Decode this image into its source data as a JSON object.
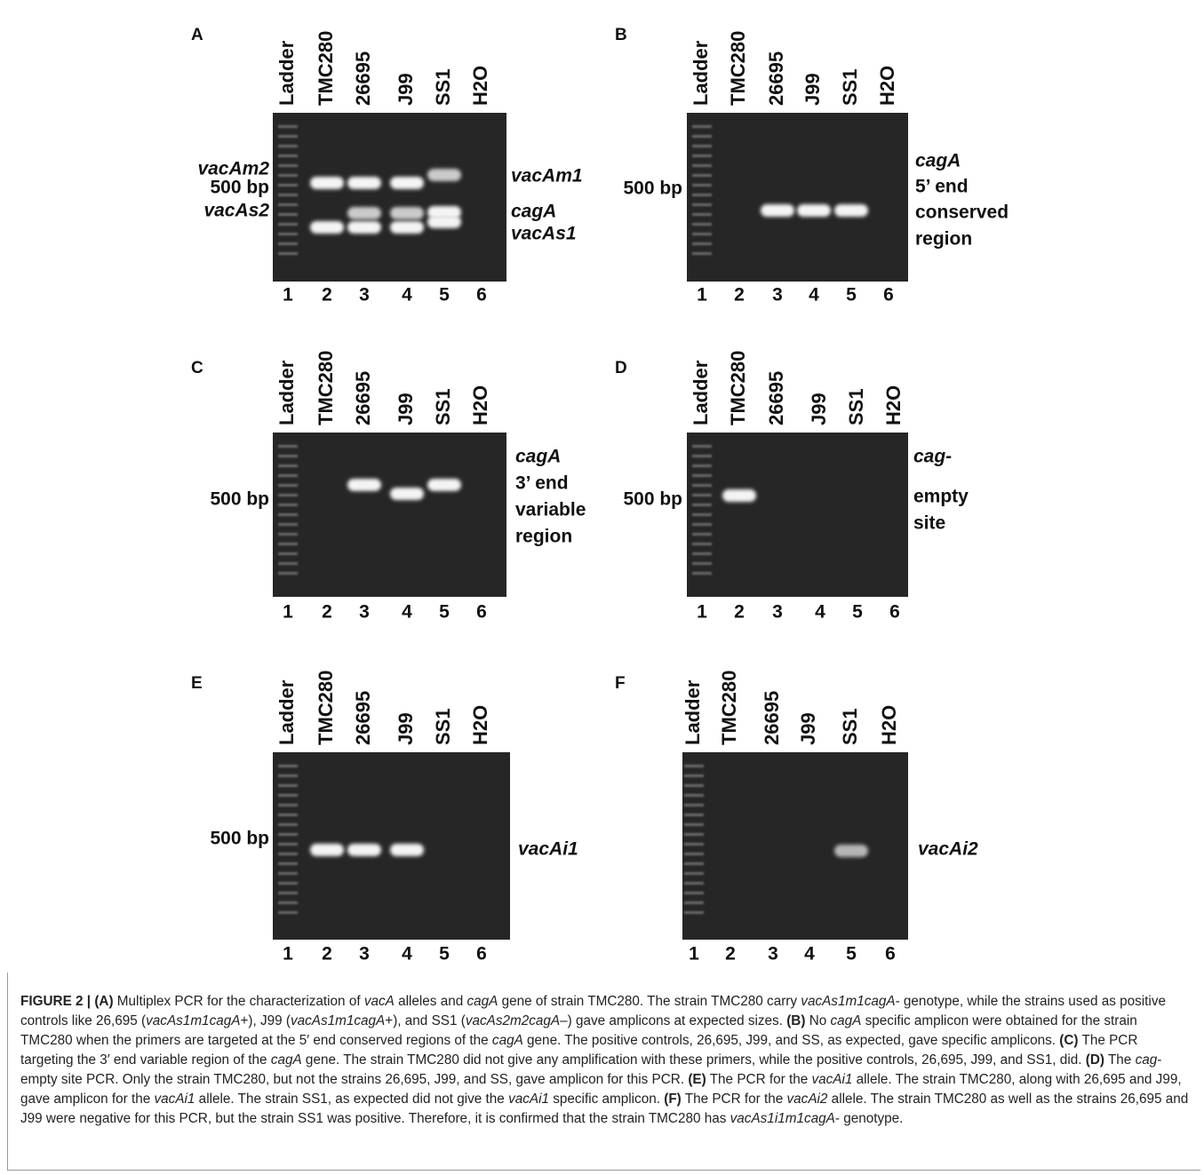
{
  "panels": [
    {
      "letter": "A",
      "lanes": [
        "Ladder",
        "TMC280",
        "26695",
        "J99",
        "SS1",
        "H2O"
      ],
      "lane_numbers": [
        "1",
        "2",
        "3",
        "4",
        "5",
        "6"
      ],
      "left_labels": [
        {
          "text": "vacAm2",
          "italic": true
        },
        {
          "text": "500 bp",
          "italic": false
        },
        {
          "text": "vacAs2",
          "italic": true
        }
      ],
      "right_labels": [
        {
          "text": "vacAm1",
          "italic": true
        },
        {
          "text": "cagA",
          "italic": true
        },
        {
          "text": "vacAs1",
          "italic": true
        }
      ]
    },
    {
      "letter": "B",
      "lanes": [
        "Ladder",
        "TMC280",
        "26695",
        "J99",
        "SS1",
        "H2O"
      ],
      "lane_numbers": [
        "1",
        "2",
        "3",
        "4",
        "5",
        "6"
      ],
      "left_labels": [
        {
          "text": "500 bp",
          "italic": false
        }
      ],
      "right_labels": [
        {
          "text": "cagA",
          "italic": true
        },
        {
          "text": "5’ end",
          "italic": false
        },
        {
          "text": "conserved",
          "italic": false
        },
        {
          "text": "region",
          "italic": false
        }
      ]
    },
    {
      "letter": "C",
      "lanes": [
        "Ladder",
        "TMC280",
        "26695",
        "J99",
        "SS1",
        "H2O"
      ],
      "lane_numbers": [
        "1",
        "2",
        "3",
        "4",
        "5",
        "6"
      ],
      "left_labels": [
        {
          "text": "500 bp",
          "italic": false
        }
      ],
      "right_labels": [
        {
          "text": "cagA",
          "italic": true
        },
        {
          "text": "3’ end",
          "italic": false
        },
        {
          "text": "variable",
          "italic": false
        },
        {
          "text": "region",
          "italic": false
        }
      ]
    },
    {
      "letter": "D",
      "lanes": [
        "Ladder",
        "TMC280",
        "26695",
        "J99",
        "SS1",
        "H2O"
      ],
      "lane_numbers": [
        "1",
        "2",
        "3",
        "4",
        "5",
        "6"
      ],
      "left_labels": [
        {
          "text": "500 bp",
          "italic": false
        }
      ],
      "right_labels": [
        {
          "text": "cag-",
          "italic": true
        },
        {
          "text": "empty",
          "italic": false
        },
        {
          "text": "site",
          "italic": false
        }
      ]
    },
    {
      "letter": "E",
      "lanes": [
        "Ladder",
        "TMC280",
        "26695",
        "J99",
        "SS1",
        "H2O"
      ],
      "lane_numbers": [
        "1",
        "2",
        "3",
        "4",
        "5",
        "6"
      ],
      "left_labels": [
        {
          "text": "500 bp",
          "italic": false
        }
      ],
      "right_labels": [
        {
          "text": "vacAi1",
          "italic": true
        }
      ]
    },
    {
      "letter": "F",
      "lanes": [
        "Ladder",
        "TMC280",
        "26695",
        "J99",
        "SS1",
        "H2O"
      ],
      "lane_numbers": [
        "1",
        "2",
        "3",
        "4",
        "5",
        "6"
      ],
      "left_labels": [],
      "right_labels": [
        {
          "text": "vacAi2",
          "italic": true
        }
      ]
    }
  ],
  "caption": [
    {
      "text": "FIGURE 2 | (A)",
      "style": "bold"
    },
    {
      "text": " Multiplex PCR for the characterization of ",
      "style": "normal"
    },
    {
      "text": "vacA",
      "style": "italic"
    },
    {
      "text": " alleles and ",
      "style": "normal"
    },
    {
      "text": "cagA",
      "style": "italic"
    },
    {
      "text": " gene of strain TMC280. The strain TMC280 carry ",
      "style": "normal"
    },
    {
      "text": "vacAs1m1cagA",
      "style": "italic"
    },
    {
      "text": "- genotype, while the strains used as positive controls like 26,695 (",
      "style": "normal"
    },
    {
      "text": "vacAs1m1cagA",
      "style": "italic"
    },
    {
      "text": "+), J99 (",
      "style": "normal"
    },
    {
      "text": "vacAs1m1cagA",
      "style": "italic"
    },
    {
      "text": "+), and SS1 (",
      "style": "normal"
    },
    {
      "text": "vacAs2m2cagA",
      "style": "italic"
    },
    {
      "text": "–) gave amplicons at expected sizes. ",
      "style": "normal"
    },
    {
      "text": "(B)",
      "style": "bold"
    },
    {
      "text": " No ",
      "style": "normal"
    },
    {
      "text": "cagA",
      "style": "italic"
    },
    {
      "text": " specific amplicon were obtained for the strain TMC280 when the primers are targeted at the 5′ end conserved regions of the ",
      "style": "normal"
    },
    {
      "text": "cagA",
      "style": "italic"
    },
    {
      "text": " gene. The positive controls, 26,695, J99, and SS, as expected, gave specific amplicons. ",
      "style": "normal"
    },
    {
      "text": "(C)",
      "style": "bold"
    },
    {
      "text": " The PCR targeting the 3′ end variable region of the ",
      "style": "normal"
    },
    {
      "text": "cagA",
      "style": "italic"
    },
    {
      "text": " gene. The strain TMC280 did not give any amplification with these primers, while the positive controls, 26,695, J99, and SS1, did. ",
      "style": "normal"
    },
    {
      "text": "(D)",
      "style": "bold"
    },
    {
      "text": " The ",
      "style": "normal"
    },
    {
      "text": "cag",
      "style": "italic"
    },
    {
      "text": "-empty site PCR. Only the strain TMC280, but not the strains 26,695, J99, and SS, gave amplicon for this PCR. ",
      "style": "normal"
    },
    {
      "text": "(E)",
      "style": "bold"
    },
    {
      "text": " The PCR for the ",
      "style": "normal"
    },
    {
      "text": "vacAi1",
      "style": "italic"
    },
    {
      "text": " allele. The strain TMC280, along with 26,695 and J99, gave amplicon for the ",
      "style": "normal"
    },
    {
      "text": "vacAi1",
      "style": "italic"
    },
    {
      "text": " allele. The strain SS1, as expected did not give the ",
      "style": "normal"
    },
    {
      "text": "vacAi1",
      "style": "italic"
    },
    {
      "text": " specific amplicon. ",
      "style": "normal"
    },
    {
      "text": "(F)",
      "style": "bold"
    },
    {
      "text": " The PCR for the ",
      "style": "normal"
    },
    {
      "text": "vacAi2",
      "style": "italic"
    },
    {
      "text": " allele. The strain TMC280 as well as the strains 26,695 and J99 were negative for this PCR, but the strain SS1 was positive. Therefore, it is confirmed that the strain TMC280 has ",
      "style": "normal"
    },
    {
      "text": "vacAs1i1m1cagA",
      "style": "italic"
    },
    {
      "text": "- genotype.",
      "style": "normal"
    }
  ]
}
